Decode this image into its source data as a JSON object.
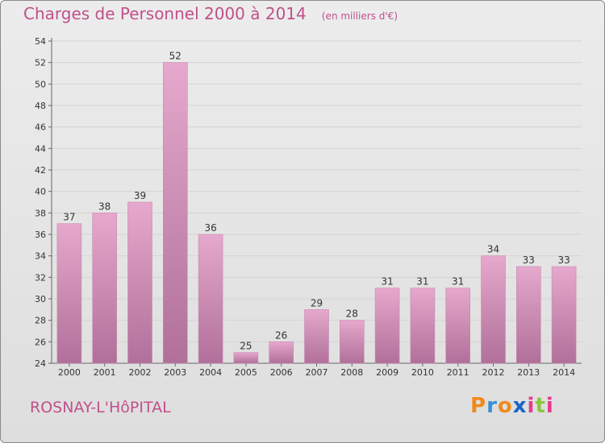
{
  "page": {
    "title": "Charges de Personnel 2000 à 2014",
    "subtitle": "(en milliers d'€)",
    "town": "ROSNAY-L'HôPITAL",
    "brand": [
      "P",
      "r",
      "o",
      "x",
      "i",
      "t",
      "i"
    ],
    "brand_colors": [
      "#f08a1c",
      "#3a8fd6",
      "#f08a1c",
      "#1a64c8",
      "#e83a8e",
      "#8cc63e",
      "#e83a8e"
    ]
  },
  "colors": {
    "accent": "#c0508a",
    "bar_light": "#e6a8cc",
    "bar_dark": "#b0709a",
    "grid": "#d4d4d4",
    "axis_text": "#333333"
  },
  "chart_data": {
    "type": "bar",
    "categories": [
      "2000",
      "2001",
      "2002",
      "2003",
      "2004",
      "2005",
      "2006",
      "2007",
      "2008",
      "2009",
      "2010",
      "2011",
      "2012",
      "2013",
      "2014"
    ],
    "values": [
      37,
      38,
      39,
      52,
      36,
      25,
      26,
      29,
      28,
      31,
      31,
      31,
      34,
      33,
      33
    ],
    "data_labels": [
      "37",
      "38",
      "39",
      "52",
      "36",
      "25",
      "26",
      "29",
      "28",
      "31",
      "31",
      "31",
      "34",
      "33",
      "33"
    ],
    "title": "Charges de Personnel 2000 à 2014",
    "subtitle": "(en milliers d'€)",
    "xlabel": "",
    "ylabel": "",
    "ylim": [
      24,
      54
    ],
    "yticks": [
      "24",
      "26",
      "28",
      "30",
      "32",
      "34",
      "36",
      "38",
      "40",
      "42",
      "44",
      "46",
      "48",
      "50",
      "52",
      "54"
    ],
    "grid": true,
    "legend": "none"
  }
}
